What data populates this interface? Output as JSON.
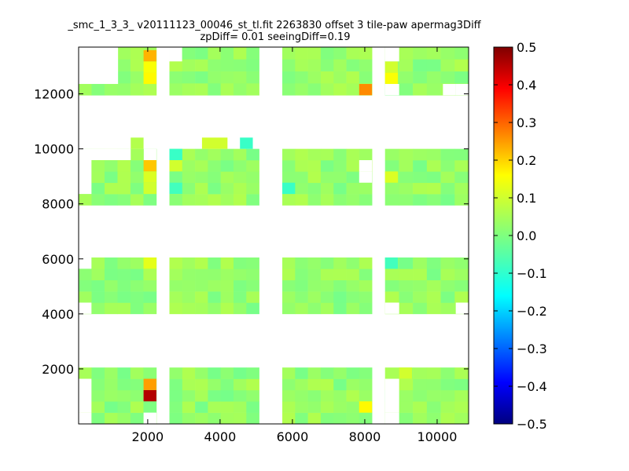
{
  "chart_data": {
    "type": "heatmap",
    "title": "_smc_1_3_3_ v20111123_00046_st_tl.fit 2263830 offset 3 tile-paw apermag3Diff",
    "subtitle": "zpDiff= 0.01 seeingDiff=0.19",
    "xlabel": "",
    "ylabel": "",
    "xlim": [
      90,
      10870
    ],
    "ylim": [
      0,
      13700
    ],
    "xticks": [
      2000,
      4000,
      6000,
      8000,
      10000
    ],
    "yticks": [
      2000,
      4000,
      6000,
      8000,
      10000,
      12000
    ],
    "x_tick_labels": [
      "2000",
      "4000",
      "6000",
      "8000",
      "10000"
    ],
    "y_tick_labels": [
      "2000",
      "4000",
      "6000",
      "8000",
      "10000",
      "12000"
    ],
    "colorbar": {
      "colormap": "jet",
      "vmin": -0.5,
      "vmax": 0.5,
      "ticks": [
        0.5,
        0.4,
        0.3,
        0.2,
        0.1,
        0.0,
        -0.1,
        -0.2,
        -0.3,
        -0.4,
        -0.5
      ],
      "tick_labels": [
        "0.5",
        "0.4",
        "0.3",
        "0.2",
        "0.1",
        "0.0",
        "−0.1",
        "−0.2",
        "−0.3",
        "−0.4",
        "−0.5"
      ]
    },
    "cell_size": [
      355,
      410
    ],
    "column_groups": [
      {
        "x_start": 90,
        "x_end": 2240,
        "cols": 6
      },
      {
        "x_start": 2600,
        "x_end": 5080,
        "cols": 7
      },
      {
        "x_start": 5720,
        "x_end": 8200,
        "cols": 7
      },
      {
        "x_start": 8560,
        "x_end": 10870,
        "cols": 6
      }
    ],
    "row_bands": [
      {
        "y_start": 0,
        "y_end": 2050,
        "rows": 5
      },
      {
        "y_start": 4000,
        "y_end": 6050,
        "rows": 5
      },
      {
        "y_start": 7950,
        "y_end": 10000,
        "rows": 5
      },
      {
        "y_start": 11950,
        "y_end": 13700,
        "rows": 4
      }
    ],
    "base_value": 0.02,
    "missing_cells": [
      [
        0,
        0,
        0
      ],
      [
        0,
        0,
        1
      ],
      [
        0,
        0,
        2
      ],
      [
        0,
        1,
        1
      ],
      [
        0,
        1,
        2
      ],
      [
        0,
        3,
        1
      ],
      [
        0,
        3,
        2
      ],
      [
        0,
        3,
        3
      ],
      [
        0,
        3,
        4
      ],
      [
        1,
        0,
        0
      ],
      [
        1,
        0,
        1
      ],
      [
        1,
        0,
        2
      ],
      [
        1,
        0,
        3
      ],
      [
        1,
        1,
        3
      ],
      [
        1,
        1,
        4
      ],
      [
        1,
        2,
        3
      ],
      [
        1,
        2,
        4
      ],
      [
        1,
        5,
        3
      ],
      [
        1,
        5,
        4
      ],
      [
        2,
        0,
        1
      ],
      [
        2,
        0,
        2
      ],
      [
        2,
        0,
        3
      ],
      [
        2,
        0,
        4
      ],
      [
        2,
        1,
        4
      ],
      [
        2,
        2,
        4
      ],
      [
        2,
        5,
        4
      ],
      [
        2,
        6,
        0
      ],
      [
        2,
        6,
        4
      ],
      [
        2,
        3,
        0
      ],
      [
        2,
        3,
        1
      ],
      [
        2,
        3,
        2
      ],
      [
        2,
        3,
        3
      ],
      [
        2,
        4,
        0
      ],
      [
        2,
        4,
        1
      ],
      [
        2,
        4,
        2
      ],
      [
        2,
        4,
        3
      ],
      [
        3,
        0,
        0
      ],
      [
        3,
        0,
        1
      ],
      [
        3,
        0,
        2
      ],
      [
        3,
        0,
        3
      ],
      [
        3,
        1,
        0
      ],
      [
        3,
        1,
        1
      ],
      [
        3,
        1,
        2
      ],
      [
        3,
        1,
        3
      ],
      [
        3,
        5,
        0
      ],
      [
        3,
        5,
        1
      ],
      [
        3,
        5,
        2
      ],
      [
        3,
        5,
        3
      ],
      [
        3,
        6,
        0
      ],
      [
        3,
        6,
        1
      ],
      [
        3,
        6,
        2
      ],
      [
        3,
        6,
        3
      ],
      [
        2,
        6,
        1
      ],
      [
        2,
        6,
        2
      ],
      [
        2,
        6,
        3
      ],
      [
        3,
        2,
        1
      ],
      [
        3,
        2,
        2
      ],
      [
        3,
        2,
        3
      ],
      [
        3,
        3,
        1
      ],
      [
        3,
        3,
        2
      ],
      [
        3,
        3,
        3
      ],
      [
        4,
        6,
        1
      ],
      [
        4,
        6,
        2
      ]
    ],
    "highlight_cells": [
      {
        "band": 0,
        "col": 5,
        "row": 0,
        "value": 0.45
      },
      {
        "band": 0,
        "col": 5,
        "row": 1,
        "value": 0.22
      },
      {
        "band": 2,
        "col": 6,
        "row": 0,
        "value": 0.12
      },
      {
        "band": 3,
        "col": 0,
        "row": 1,
        "value": 0.08
      },
      {
        "band": 1,
        "col": 5,
        "row": 4,
        "value": 0.07
      },
      {
        "band": 1,
        "col": 5,
        "row": 3,
        "value": 0.12
      },
      {
        "band": 1,
        "col": 0,
        "row": 3,
        "value": -0.05
      },
      {
        "band": 3,
        "col": 0,
        "row": 3,
        "value": -0.06
      },
      {
        "band": 2,
        "col": 5,
        "row": 4,
        "value": 0.08
      },
      {
        "band": 2,
        "col": 5,
        "row": 2,
        "value": 0.18
      },
      {
        "band": 2,
        "col": 5,
        "row": 1,
        "value": 0.09
      },
      {
        "band": 2,
        "col": 0,
        "row": 2,
        "value": -0.06
      },
      {
        "band": 2,
        "col": 0,
        "row": 3,
        "value": 0.09
      },
      {
        "band": 2,
        "col": 6,
        "row": 3,
        "value": 0.09
      },
      {
        "band": 2,
        "col": 5,
        "row": 0,
        "value": 0.01
      },
      {
        "band": 2,
        "col": 0,
        "row": 1,
        "value": -0.08
      },
      {
        "band": 3,
        "col": 5,
        "row": 0,
        "value": 0.07
      },
      {
        "band": 3,
        "col": 5,
        "row": 2,
        "value": 0.13
      },
      {
        "band": 3,
        "col": 5,
        "row": 3,
        "value": 0.25
      },
      {
        "band": 3,
        "col": 6,
        "row": 0,
        "value": 0.25
      },
      {
        "band": 3,
        "col": 6,
        "row": 2,
        "value": 0.1
      },
      {
        "band": 3,
        "col": 6,
        "row": 3,
        "value": 0.14
      },
      {
        "band": 3,
        "col": 1,
        "row": 2,
        "value": -0.05
      },
      {
        "band": 3,
        "col": 2,
        "row": 2,
        "value": 0.1
      },
      {
        "band": 1,
        "col": 6,
        "row": 2,
        "value": 0.06
      },
      {
        "band": 2,
        "col": 3,
        "row": 4,
        "value": 0.09
      },
      {
        "band": 2,
        "col": 4,
        "row": 4,
        "value": 0.06
      },
      {
        "band": 2,
        "col": 6,
        "row": 4,
        "value": -0.08
      }
    ]
  }
}
